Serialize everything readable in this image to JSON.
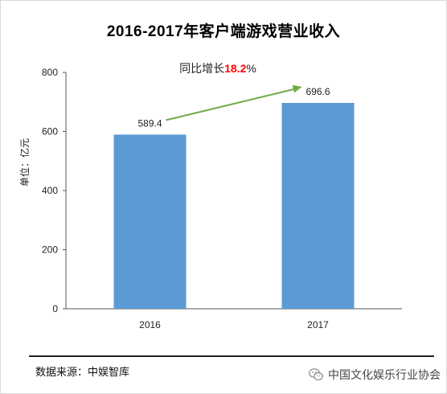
{
  "header": {
    "title": "2016-2017年客户端游戏营业收入"
  },
  "chart_data": {
    "type": "bar",
    "categories": [
      "2016",
      "2017"
    ],
    "values": [
      589.4,
      696.6
    ],
    "value_labels": [
      "589.4",
      "696.6"
    ],
    "ylabel": "单位：亿元",
    "xlabel": "",
    "ylim": [
      0,
      800
    ],
    "yticks": [
      "0",
      "200",
      "400",
      "600",
      "800"
    ],
    "bar_color": "#5b9bd5",
    "grid": false,
    "annotation": {
      "prefix": "同比增长",
      "value": "18.2",
      "suffix": "%",
      "value_color": "#ff0000",
      "arrow_color": "#70ad47"
    }
  },
  "footer": {
    "source": "数据来源：中娱智库",
    "watermark": "中国文化娱乐行业协会"
  }
}
